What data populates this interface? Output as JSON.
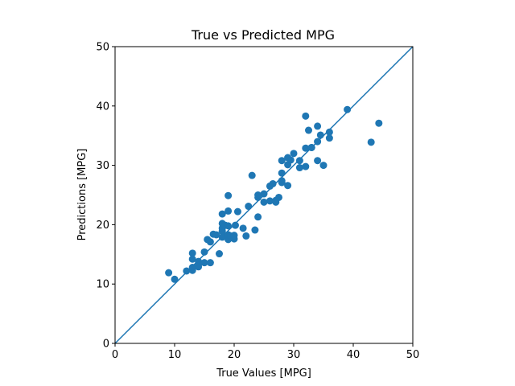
{
  "chart_data": {
    "type": "scatter",
    "title": "True vs Predicted MPG",
    "xlabel": "True Values [MPG]",
    "ylabel": "Predictions [MPG]",
    "xlim": [
      0,
      50
    ],
    "ylim": [
      0,
      50
    ],
    "xticks": [
      0,
      10,
      20,
      30,
      40,
      50
    ],
    "yticks": [
      0,
      10,
      20,
      30,
      40,
      50
    ],
    "grid": false,
    "reference_line": {
      "from": [
        0,
        0
      ],
      "to": [
        50,
        50
      ]
    },
    "colors": {
      "points": "#1f77b4",
      "line": "#1f77b4"
    },
    "x": [
      9.0,
      10.0,
      12.0,
      13.0,
      13.0,
      13.0,
      13.0,
      14.0,
      14.0,
      14.0,
      15.0,
      15.0,
      15.5,
      16.0,
      16.0,
      16.5,
      17.0,
      17.5,
      18.0,
      18.0,
      18.0,
      18.0,
      18.0,
      18.5,
      19.0,
      19.0,
      19.0,
      19.0,
      19.0,
      19.4,
      20.0,
      20.0,
      20.2,
      20.6,
      21.5,
      22.0,
      22.4,
      23.0,
      23.5,
      24.0,
      24.0,
      24.0,
      25.0,
      25.0,
      26.0,
      26.0,
      26.5,
      27.0,
      27.0,
      27.5,
      28.0,
      28.0,
      28.0,
      28.0,
      29.0,
      29.0,
      29.0,
      29.5,
      30.0,
      31.0,
      31.0,
      32.0,
      32.0,
      32.0,
      32.5,
      33.0,
      33.0,
      34.0,
      34.0,
      34.0,
      34.5,
      35.0,
      36.0,
      36.0,
      39.0,
      43.0,
      44.3
    ],
    "y": [
      11.9,
      10.8,
      12.2,
      12.3,
      12.8,
      14.2,
      15.2,
      12.9,
      13.3,
      13.8,
      13.6,
      15.4,
      17.5,
      13.6,
      17.1,
      18.4,
      18.3,
      15.1,
      17.9,
      18.9,
      19.4,
      20.2,
      21.8,
      19.9,
      17.5,
      18.3,
      19.8,
      22.3,
      24.9,
      18.1,
      17.6,
      18.2,
      19.9,
      22.2,
      19.4,
      18.1,
      23.1,
      28.3,
      19.1,
      21.3,
      24.6,
      25.0,
      23.8,
      25.2,
      24.0,
      26.5,
      26.9,
      23.8,
      24.1,
      24.6,
      27.1,
      27.4,
      28.7,
      30.8,
      26.6,
      30.1,
      31.3,
      30.9,
      32.0,
      29.6,
      30.8,
      29.8,
      32.9,
      38.3,
      35.9,
      33.0,
      33.0,
      30.8,
      34.0,
      36.6,
      35.1,
      30.0,
      34.6,
      35.6,
      39.4,
      33.9,
      37.1
    ]
  }
}
